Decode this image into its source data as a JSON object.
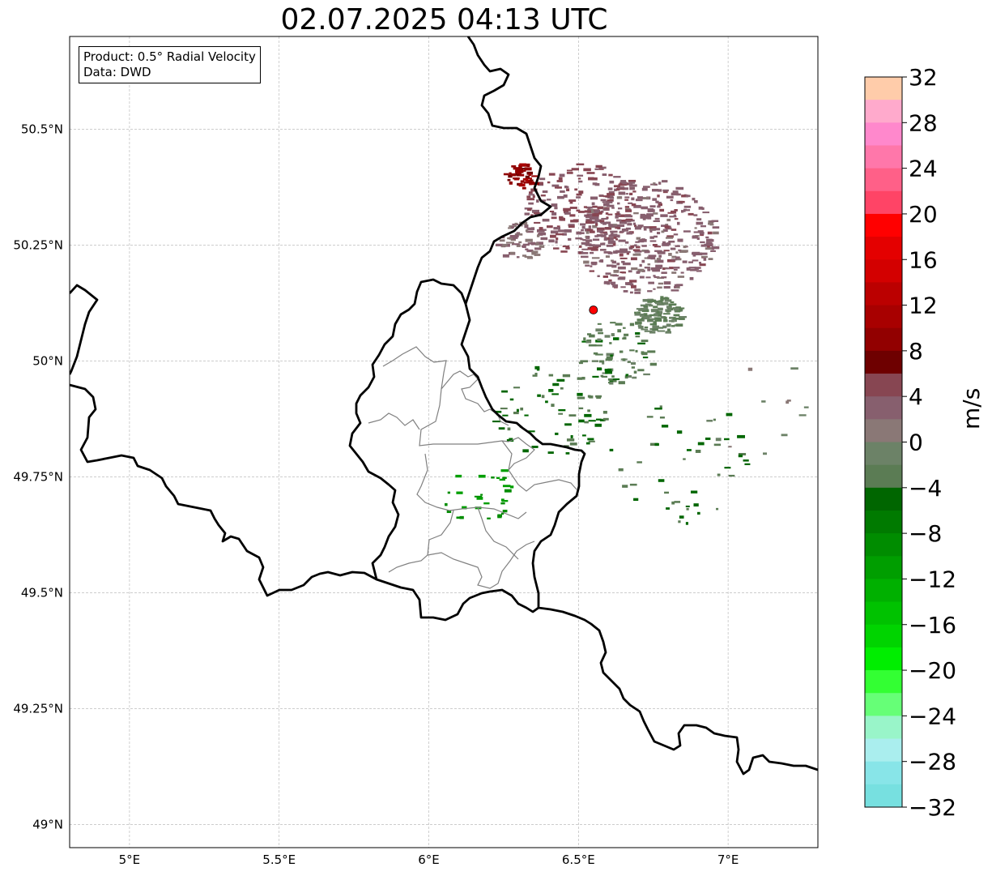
{
  "title": "02.07.2025 04:13 UTC",
  "info": {
    "product": "Product: 0.5° Radial Velocity",
    "data": "Data: DWD"
  },
  "map": {
    "lon_range": [
      4.8,
      7.3
    ],
    "lat_range": [
      48.95,
      50.7
    ],
    "lon_ticks": [
      {
        "value": 5.0,
        "label": "5°E"
      },
      {
        "value": 5.5,
        "label": "5.5°E"
      },
      {
        "value": 6.0,
        "label": "6°E"
      },
      {
        "value": 6.5,
        "label": "6.5°E"
      },
      {
        "value": 7.0,
        "label": "7°E"
      }
    ],
    "lat_ticks": [
      {
        "value": 50.5,
        "label": "50.5°N"
      },
      {
        "value": 50.25,
        "label": "50.25°N"
      },
      {
        "value": 50.0,
        "label": "50°N"
      },
      {
        "value": 49.75,
        "label": "49.75°N"
      },
      {
        "value": 49.5,
        "label": "49.5°N"
      },
      {
        "value": 49.25,
        "label": "49.25°N"
      },
      {
        "value": 49.0,
        "label": "49°N"
      }
    ],
    "grid": true,
    "radar_site": {
      "lon": 6.55,
      "lat": 50.11,
      "color": "#ff0000"
    },
    "velocity_clusters": [
      {
        "lon": 6.72,
        "lat": 50.27,
        "spread": 0.18,
        "count": 420,
        "value": 3
      },
      {
        "lon": 6.5,
        "lat": 50.33,
        "spread": 0.14,
        "count": 200,
        "value": 4
      },
      {
        "lon": 6.3,
        "lat": 50.4,
        "spread": 0.04,
        "count": 45,
        "value": 9
      },
      {
        "lon": 6.3,
        "lat": 50.26,
        "spread": 0.06,
        "count": 60,
        "value": 2
      },
      {
        "lon": 6.76,
        "lat": 50.1,
        "spread": 0.06,
        "count": 110,
        "value": -2
      },
      {
        "lon": 6.62,
        "lat": 50.02,
        "spread": 0.1,
        "count": 80,
        "value": -3
      },
      {
        "lon": 6.4,
        "lat": 49.9,
        "spread": 0.15,
        "count": 70,
        "value": -4
      },
      {
        "lon": 6.85,
        "lat": 49.78,
        "spread": 0.2,
        "count": 45,
        "value": -4
      },
      {
        "lon": 6.15,
        "lat": 49.72,
        "spread": 0.1,
        "count": 30,
        "value": -10
      },
      {
        "lon": 7.1,
        "lat": 49.9,
        "spread": 0.15,
        "count": 12,
        "value": 0
      }
    ]
  },
  "colorbar": {
    "label": "m/s",
    "min": -32,
    "max": 32,
    "tick_labels": [
      "32",
      "28",
      "24",
      "20",
      "16",
      "12",
      "8",
      "4",
      "0",
      "−4",
      "−8",
      "−12",
      "−16",
      "−20",
      "−24",
      "−28",
      "−32"
    ],
    "tick_values": [
      32,
      28,
      24,
      20,
      16,
      12,
      8,
      4,
      0,
      -4,
      -8,
      -12,
      -16,
      -20,
      -24,
      -28,
      -32
    ],
    "colors_top_to_bottom": [
      "#ffccaa",
      "#ffaacc",
      "#ff88cc",
      "#ff77aa",
      "#ff6088",
      "#ff4466",
      "#ff0000",
      "#e40000",
      "#d30000",
      "#bb0000",
      "#a80000",
      "#920000",
      "#6e0000",
      "#874652",
      "#875f6e",
      "#8a7876",
      "#6c8267",
      "#5b7c54",
      "#006600",
      "#007a00",
      "#008c00",
      "#009e00",
      "#00b000",
      "#00c200",
      "#00d400",
      "#00ee00",
      "#33ff33",
      "#66ff77",
      "#99f5c9",
      "#aaeeee",
      "#88e5e8",
      "#77e0e0"
    ]
  }
}
